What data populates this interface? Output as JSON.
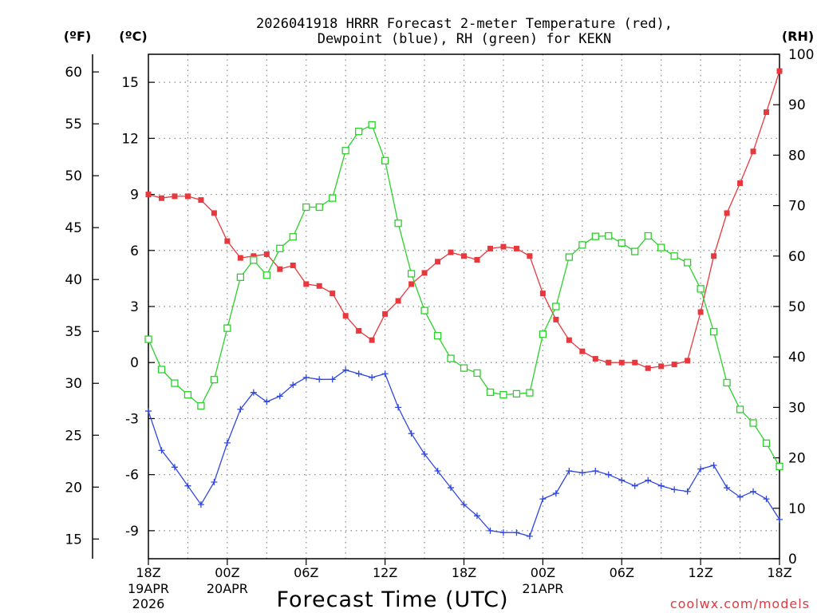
{
  "chart_data": {
    "type": "line",
    "title_line1": "2026041918 HRRR Forecast 2-meter Temperature (red),",
    "title_line2": "Dewpoint (blue), RH (green) for KEKN",
    "xlabel": "Forecast Time (UTC)",
    "credit": "coolwx.com/models",
    "unit_f": "(ºF)",
    "unit_c": "(ºC)",
    "unit_rh": "(RH)",
    "x_hours": [
      0,
      1,
      2,
      3,
      4,
      5,
      6,
      7,
      8,
      9,
      10,
      11,
      12,
      13,
      14,
      15,
      16,
      17,
      18,
      19,
      20,
      21,
      22,
      23,
      24,
      25,
      26,
      27,
      28,
      29,
      30,
      31,
      32,
      33,
      34,
      35,
      36,
      37,
      38,
      39,
      40,
      41,
      42,
      43,
      44,
      45,
      46,
      47,
      48
    ],
    "xlim": [
      0,
      48
    ],
    "x_ticks": [
      {
        "hour": 0,
        "label": "18Z",
        "date": "19APR",
        "year": "2026"
      },
      {
        "hour": 6,
        "label": "00Z",
        "date": "20APR",
        "year": ""
      },
      {
        "hour": 12,
        "label": "06Z",
        "date": "",
        "year": ""
      },
      {
        "hour": 18,
        "label": "12Z",
        "date": "",
        "year": ""
      },
      {
        "hour": 24,
        "label": "18Z",
        "date": "",
        "year": ""
      },
      {
        "hour": 30,
        "label": "00Z",
        "date": "21APR",
        "year": ""
      },
      {
        "hour": 36,
        "label": "06Z",
        "date": "",
        "year": ""
      },
      {
        "hour": 42,
        "label": "12Z",
        "date": "",
        "year": ""
      },
      {
        "hour": 48,
        "label": "18Z",
        "date": "",
        "year": ""
      }
    ],
    "ylim_c": [
      -10.5,
      16.5
    ],
    "yticks_c": [
      -9,
      -6,
      -3,
      0,
      3,
      6,
      9,
      12,
      15
    ],
    "yticks_f": [
      15,
      20,
      25,
      30,
      35,
      40,
      45,
      50,
      55,
      60
    ],
    "ylim_rh": [
      0,
      100
    ],
    "yticks_rh": [
      0,
      10,
      20,
      30,
      40,
      50,
      60,
      70,
      80,
      90,
      100
    ],
    "series": [
      {
        "name": "2-meter Temperature",
        "color": "#e8383d",
        "marker": "filled-square",
        "units": "degC",
        "values": [
          9.0,
          8.8,
          8.9,
          8.9,
          8.7,
          8.0,
          6.5,
          5.6,
          5.7,
          5.8,
          5.0,
          5.2,
          4.2,
          4.1,
          3.7,
          2.5,
          1.7,
          1.2,
          2.6,
          3.3,
          4.2,
          4.8,
          5.4,
          5.9,
          5.7,
          5.5,
          6.1,
          6.2,
          6.1,
          5.7,
          3.7,
          2.3,
          1.2,
          0.6,
          0.2,
          0.0,
          0.0,
          0.0,
          -0.3,
          -0.2,
          -0.1,
          0.1,
          2.7,
          5.7,
          8.0,
          9.6,
          11.3,
          13.4,
          15.6
        ]
      },
      {
        "name": "Dewpoint",
        "color": "#3048e0",
        "marker": "plus",
        "units": "degC",
        "values": [
          -2.6,
          -4.7,
          -5.6,
          -6.6,
          -7.6,
          -6.4,
          -4.3,
          -2.5,
          -1.6,
          -2.1,
          -1.8,
          -1.2,
          -0.8,
          -0.9,
          -0.9,
          -0.4,
          -0.6,
          -0.8,
          -0.6,
          -2.4,
          -3.8,
          -4.9,
          -5.8,
          -6.7,
          -7.6,
          -8.2,
          -9.0,
          -9.1,
          -9.1,
          -9.3,
          -7.3,
          -7.0,
          -5.8,
          -5.9,
          -5.8,
          -6.0,
          -6.3,
          -6.6,
          -6.3,
          -6.6,
          -6.8,
          -6.9,
          -5.7,
          -5.5,
          -6.7,
          -7.2,
          -6.9,
          -7.3,
          -8.4
        ]
      },
      {
        "name": "RH",
        "color": "#2bd12b",
        "marker": "open-square",
        "units": "percent",
        "values": [
          43.5,
          37.5,
          34.8,
          32.5,
          30.3,
          35.5,
          45.7,
          55.8,
          59.2,
          56.2,
          61.5,
          63.8,
          69.7,
          69.7,
          71.5,
          80.9,
          84.7,
          86.0,
          78.9,
          66.5,
          56.5,
          49.2,
          44.2,
          39.7,
          37.8,
          36.8,
          33.0,
          32.5,
          32.7,
          32.9,
          44.5,
          50.0,
          59.8,
          62.2,
          63.9,
          64.0,
          62.6,
          60.9,
          64.0,
          61.7,
          60.0,
          58.7,
          53.5,
          45.0,
          34.9,
          29.6,
          26.9,
          22.9,
          18.3
        ]
      }
    ]
  }
}
